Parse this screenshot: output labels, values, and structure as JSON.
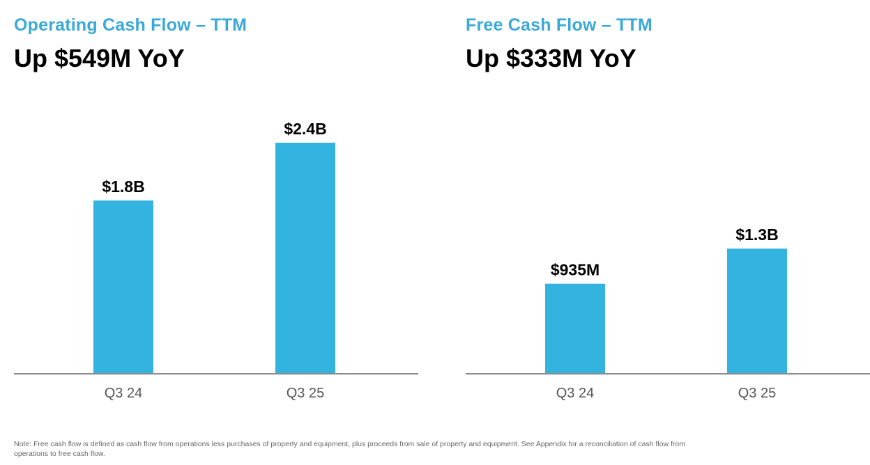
{
  "colors": {
    "title": "#3AA9D8",
    "bar": "#33B3DF",
    "axis": "#8C8C8C"
  },
  "chart_data": [
    {
      "type": "bar",
      "title": "Operating Cash Flow – TTM",
      "subtitle": "Up $549M YoY",
      "categories": [
        "Q3 24",
        "Q3 25"
      ],
      "values": [
        1.8,
        2.4
      ],
      "value_unit": "$B",
      "data_labels": [
        "$1.8B",
        "$2.4B"
      ],
      "xlabel": "",
      "ylabel": "",
      "ylim": [
        0,
        3.0
      ],
      "grid": false,
      "legend": "none"
    },
    {
      "type": "bar",
      "title": "Free Cash Flow – TTM",
      "subtitle": "Up $333M YoY",
      "categories": [
        "Q3 24",
        "Q3 25"
      ],
      "values": [
        0.935,
        1.3
      ],
      "value_unit": "$B",
      "data_labels": [
        "$935M",
        "$1.3B"
      ],
      "xlabel": "",
      "ylabel": "",
      "ylim": [
        0,
        3.0
      ],
      "grid": false,
      "legend": "none"
    }
  ],
  "footnote": "Note: Free cash flow is defined as cash flow from operations less purchases of property and equipment, plus proceeds from sale of property and equipment. See Appendix for a reconciliation of cash flow from operations to free cash flow."
}
